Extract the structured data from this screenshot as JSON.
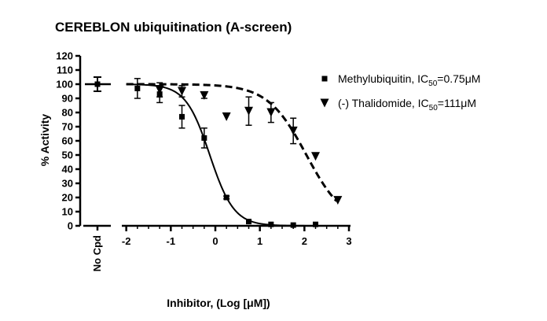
{
  "chart_data": {
    "type": "scatter",
    "title": "CEREBLON ubiquitination (A-screen)",
    "xlabel": "Inhibitor, (Log [μM])",
    "ylabel": "% Activity",
    "xlim": [
      -2.1,
      3
    ],
    "ylim": [
      0,
      120
    ],
    "xticks": [
      "-2",
      "-1",
      "0",
      "1",
      "2",
      "3"
    ],
    "yticks": [
      "0",
      "10",
      "20",
      "30",
      "40",
      "50",
      "60",
      "70",
      "80",
      "90",
      "100",
      "110",
      "120"
    ],
    "control_label": "No Cpd",
    "control_value": 100,
    "control_error": 5,
    "legend_position": "top-right",
    "series": [
      {
        "name_prefix": "Methylubiquitin, IC",
        "name_sub": "50",
        "name_suffix": "=0.75μM",
        "marker": "square",
        "curve": "solid",
        "ic50_log": -0.125,
        "hill": 1.6,
        "x": [
          -1.75,
          -1.25,
          -0.75,
          -0.25,
          0.25,
          0.75,
          1.25,
          1.75,
          2.25
        ],
        "y": [
          97,
          93,
          77,
          62,
          20,
          3,
          1,
          0.5,
          1
        ],
        "err": [
          7,
          6,
          8,
          7,
          1,
          0.5,
          0.5,
          0.5,
          0.5
        ]
      },
      {
        "name_prefix": "(-) Thalidomide, IC",
        "name_sub": "50",
        "name_suffix": "=111μM",
        "marker": "triangle-down",
        "curve": "dashed",
        "ic50_log": 2.045,
        "hill": 1,
        "x": [
          -1.25,
          -0.75,
          -0.25,
          0.25,
          0.75,
          1.25,
          1.75,
          2.25,
          2.75
        ],
        "y": [
          96,
          95,
          92,
          77,
          81,
          80,
          67,
          49,
          18
        ],
        "err": [
          5,
          4,
          2,
          0,
          10,
          7,
          9,
          0,
          0
        ]
      }
    ]
  }
}
